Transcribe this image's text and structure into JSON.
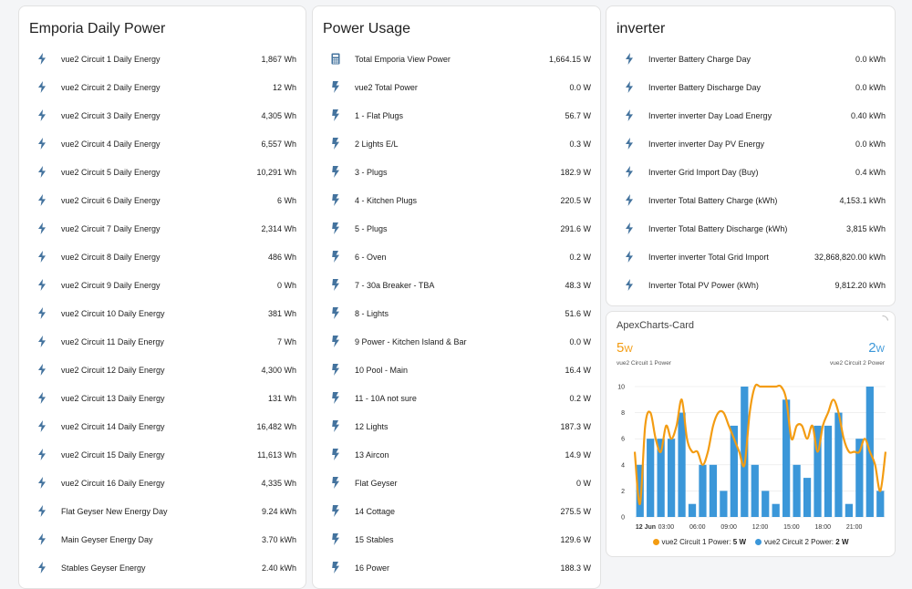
{
  "emporia": {
    "title": "Emporia Daily Power",
    "items": [
      {
        "name": "vue2 Circuit 1 Daily Energy",
        "value": "1,867 Wh"
      },
      {
        "name": "vue2 Circuit 2 Daily Energy",
        "value": "12 Wh"
      },
      {
        "name": "vue2 Circuit 3 Daily Energy",
        "value": "4,305 Wh"
      },
      {
        "name": "vue2 Circuit 4 Daily Energy",
        "value": "6,557 Wh"
      },
      {
        "name": "vue2 Circuit 5 Daily Energy",
        "value": "10,291 Wh"
      },
      {
        "name": "vue2 Circuit 6 Daily Energy",
        "value": "6 Wh"
      },
      {
        "name": "vue2 Circuit 7 Daily Energy",
        "value": "2,314 Wh"
      },
      {
        "name": "vue2 Circuit 8 Daily Energy",
        "value": "486 Wh"
      },
      {
        "name": "vue2 Circuit 9 Daily Energy",
        "value": "0 Wh"
      },
      {
        "name": "vue2 Circuit 10 Daily Energy",
        "value": "381 Wh"
      },
      {
        "name": "vue2 Circuit 11 Daily Energy",
        "value": "7 Wh"
      },
      {
        "name": "vue2 Circuit 12 Daily Energy",
        "value": "4,300 Wh"
      },
      {
        "name": "vue2 Circuit 13 Daily Energy",
        "value": "131 Wh"
      },
      {
        "name": "vue2 Circuit 14 Daily Energy",
        "value": "16,482 Wh"
      },
      {
        "name": "vue2 Circuit 15 Daily Energy",
        "value": "11,613 Wh"
      },
      {
        "name": "vue2 Circuit 16 Daily Energy",
        "value": "4,335 Wh"
      },
      {
        "name": "Flat Geyser New Energy Day",
        "value": "9.24 kWh"
      },
      {
        "name": "Main Geyser Energy Day",
        "value": "3.70 kWh"
      },
      {
        "name": "Stables Geyser Energy",
        "value": "2.40 kWh"
      }
    ]
  },
  "usage": {
    "title": "Power Usage",
    "items": [
      {
        "name": "Total Emporia View Power",
        "value": "1,664.15 W",
        "icon": "calculator-icon"
      },
      {
        "name": "vue2 Total Power",
        "value": "0.0 W",
        "icon": "flash-icon"
      },
      {
        "name": "1 - Flat Plugs",
        "value": "56.7 W",
        "icon": "flash-icon"
      },
      {
        "name": "2 Lights E/L",
        "value": "0.3 W",
        "icon": "flash-icon"
      },
      {
        "name": "3 - Plugs",
        "value": "182.9 W",
        "icon": "flash-icon"
      },
      {
        "name": "4 - Kitchen Plugs",
        "value": "220.5 W",
        "icon": "flash-icon"
      },
      {
        "name": "5 - Plugs",
        "value": "291.6 W",
        "icon": "flash-icon"
      },
      {
        "name": "6 - Oven",
        "value": "0.2 W",
        "icon": "flash-icon"
      },
      {
        "name": "7 - 30a Breaker - TBA",
        "value": "48.3 W",
        "icon": "flash-icon"
      },
      {
        "name": "8 - Lights",
        "value": "51.6 W",
        "icon": "flash-icon"
      },
      {
        "name": "9 Power - Kitchen Island & Bar",
        "value": "0.0 W",
        "icon": "flash-icon"
      },
      {
        "name": "10 Pool - Main",
        "value": "16.4 W",
        "icon": "flash-icon"
      },
      {
        "name": "11 - 10A not sure",
        "value": "0.2 W",
        "icon": "flash-icon"
      },
      {
        "name": "12 Lights",
        "value": "187.3 W",
        "icon": "flash-icon"
      },
      {
        "name": "13 Aircon",
        "value": "14.9 W",
        "icon": "flash-icon"
      },
      {
        "name": "Flat Geyser",
        "value": "0 W",
        "icon": "flash-icon"
      },
      {
        "name": "14 Cottage",
        "value": "275.5 W",
        "icon": "flash-icon"
      },
      {
        "name": "15 Stables",
        "value": "129.6 W",
        "icon": "flash-icon"
      },
      {
        "name": "16 Power",
        "value": "188.3 W",
        "icon": "flash-icon"
      }
    ]
  },
  "inverter": {
    "title": "inverter",
    "items": [
      {
        "name": "Inverter Battery Charge Day",
        "value": "0.0 kWh"
      },
      {
        "name": "Inverter Battery Discharge Day",
        "value": "0.0 kWh"
      },
      {
        "name": "Inverter inverter Day Load Energy",
        "value": "0.40 kWh"
      },
      {
        "name": "Inverter inverter Day PV Energy",
        "value": "0.0 kWh"
      },
      {
        "name": "Inverter Grid Import Day (Buy)",
        "value": "0.4 kWh"
      },
      {
        "name": "Inverter Total Battery Charge (kWh)",
        "value": "4,153.1 kWh"
      },
      {
        "name": "Inverter Total Battery Discharge (kWh)",
        "value": "3,815 kWh"
      },
      {
        "name": "Inverter inverter Total Grid Import",
        "value": "32,868,820.00 kWh"
      },
      {
        "name": "Inverter Total PV Power (kWh)",
        "value": "9,812.20 kWh"
      }
    ]
  },
  "apex": {
    "title": "ApexCharts-Card",
    "header": [
      {
        "value": "5",
        "unit": "W",
        "label": "vue2 Circuit 1 Power",
        "color": "#f39c12"
      },
      {
        "value": "2",
        "unit": "W",
        "label": "vue2 Circuit 2 Power",
        "color": "#3b97d9"
      }
    ],
    "legend": [
      {
        "label": "vue2 Circuit 1 Power:",
        "value": "5 W",
        "color": "#f39c12"
      },
      {
        "label": "vue2 Circuit 2 Power:",
        "value": "2 W",
        "color": "#3b97d9"
      }
    ]
  },
  "chart_data": {
    "type": "bar",
    "ylim": [
      0,
      10
    ],
    "yticks": [
      "0",
      "2",
      "4",
      "6",
      "8",
      "10"
    ],
    "xticks": [
      "12 Jun",
      "03:00",
      "06:00",
      "09:00",
      "12:00",
      "15:00",
      "18:00",
      "21:00"
    ],
    "xrange_hours": [
      0,
      24
    ],
    "series": [
      {
        "name": "vue2 Circuit 2 Power",
        "type": "bar",
        "color": "#3b97d9",
        "x_hours": [
          0.5,
          1.5,
          2.5,
          3.5,
          4.5,
          5.5,
          6.5,
          7.5,
          8.5,
          9.5,
          10.5,
          11.5,
          12.5,
          13.5,
          14.5,
          15.5,
          16.5,
          17.5,
          18.5,
          19.5,
          20.5,
          21.5,
          22.5,
          23.5
        ],
        "values": [
          4,
          6,
          6,
          6,
          8,
          1,
          4,
          4,
          2,
          7,
          10,
          4,
          2,
          1,
          9,
          4,
          3,
          7,
          7,
          8,
          1,
          6,
          10,
          2
        ]
      },
      {
        "name": "vue2 Circuit 1 Power",
        "type": "line",
        "color": "#f39c12",
        "x_hours": [
          0,
          0.5,
          1,
          1.5,
          2,
          2.5,
          3,
          3.5,
          4,
          4.5,
          5,
          5.5,
          6,
          6.5,
          7,
          7.5,
          8,
          8.5,
          9,
          9.5,
          10,
          10.5,
          11,
          11.5,
          12,
          12.5,
          13,
          13.5,
          14,
          14.5,
          15,
          15.5,
          16,
          16.5,
          17,
          17.5,
          18,
          18.5,
          19,
          19.5,
          20,
          20.5,
          21,
          21.5,
          22,
          22.5,
          23,
          23.5,
          24
        ],
        "values": [
          5,
          1,
          7,
          8,
          6,
          5,
          7,
          6,
          7,
          9,
          6,
          5,
          5,
          4,
          5,
          7,
          8,
          8,
          7,
          6,
          5,
          4,
          8,
          10,
          10,
          10,
          10,
          10,
          10,
          9,
          6,
          7,
          7,
          6,
          7,
          5,
          7,
          8,
          9,
          8,
          6,
          5,
          5,
          5,
          6,
          5,
          4,
          2,
          5
        ]
      }
    ]
  }
}
